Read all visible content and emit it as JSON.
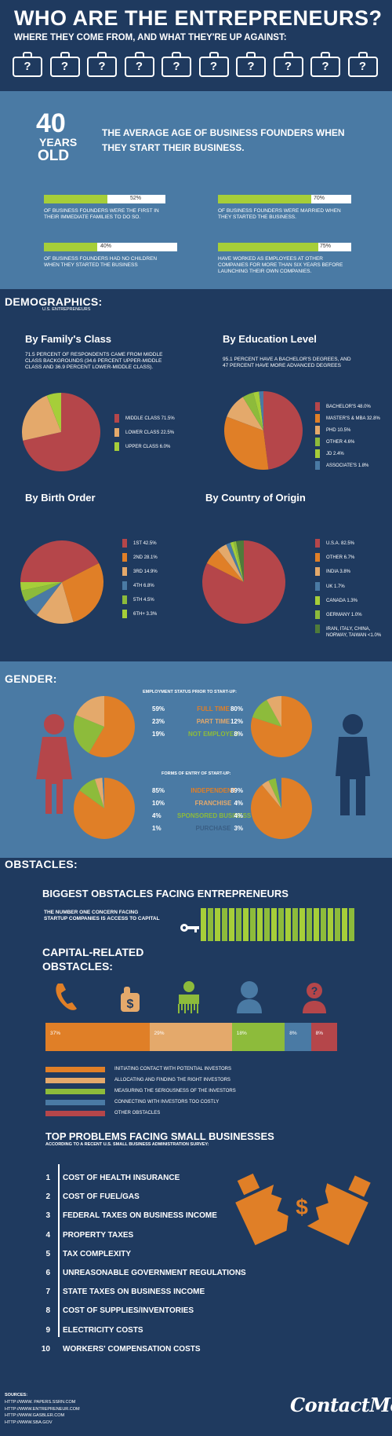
{
  "header": {
    "title": "WHO ARE THE ENTREPRENEURS?",
    "subtitle": "WHERE THEY COME FROM, AND WHAT THEY'RE UP AGAINST:",
    "briefcase_glyph": "?"
  },
  "stats": {
    "age_number": "40",
    "age_years": "YEARS",
    "age_old": "OLD",
    "age_text": "THE AVERAGE AGE OF BUSINESS FOUNDERS WHEN THEY START THEIR BUSINESS.",
    "bars": [
      {
        "pct": "52%",
        "value": 52,
        "text": "OF BUSINESS FOUNDERS WERE THE FIRST IN THEIR IMMEDIATE FAMILIES TO DO SO."
      },
      {
        "pct": "70%",
        "value": 70,
        "text": "OF BUSINESS FOUNDERS WERE MARRIED WHEN THEY STARTED THE BUSINESS."
      },
      {
        "pct": "40%",
        "value": 40,
        "text": "OF BUSINESS FOUNDERS HAD NO CHILDREN WHEN THEY STARTED THE BUSINESS"
      },
      {
        "pct": "75%",
        "value": 75,
        "text": "HAVE WORKED AS EMPLOYEES AT OTHER COMPANIES FOR MORE THAN SIX YEARS BEFORE LAUNCHING THEIR OWN COMPANIES."
      }
    ]
  },
  "demographics": {
    "heading": "DEMOGRAPHICS:",
    "sub": "U.S. ENTREPRENEURS",
    "family": {
      "title": "By Family's Class",
      "desc": "71.5 PERCENT OF RESPONDENTS CAME FROM MIDDLE CLASS BACKGROUNDS (34.6 PERCENT UPPER-MIDDLE CLASS AND 36.9 PERCENT LOWER-MIDDLE CLASS).",
      "legend": [
        "MIDDLE CLASS  71.5%",
        "LOWER CLASS  22.5%",
        "UPPER CLASS  6.0%"
      ]
    },
    "education": {
      "title": "By Education Level",
      "desc": "95.1 PERCENT HAVE A BACHELOR'S DEGREES, AND 47 PERCENT HAVE MORE ADVANCED DEGREES",
      "legend": [
        "BACHELOR'S 48.0%",
        "MASTER'S & MBA 32.8%",
        "PHD 10.5%",
        "OTHER 4.6%",
        "JD 2.4%",
        "ASSOCIATE'S 1.8%"
      ]
    },
    "birth": {
      "title": "By Birth Order",
      "legend": [
        "1ST  42.5%",
        "2ND  28.1%",
        "3RD  14.9%",
        "4TH  6.8%",
        "5TH  4.5%",
        "6TH+  3.3%"
      ]
    },
    "country": {
      "title": "By Country of Origin",
      "legend": [
        "U.S.A.  82.5%",
        "OTHER  6.7%",
        "INDIA  3.8%",
        "UK  1.7%",
        "CANADA  1.3%",
        "GERMANY  1.0%",
        "IRAN, ITALY, CHINA,",
        "NORWAY, TAIWAN <1.0%"
      ]
    }
  },
  "gender": {
    "heading": "GENDER:",
    "employment_title": "EMPLOYMENT STATUS PRIOR TO START-UP:",
    "employment_rows": [
      {
        "f": "59%",
        "label": "FULL TIME",
        "m": "80%"
      },
      {
        "f": "23%",
        "label": "PART TIME",
        "m": "12%"
      },
      {
        "f": "19%",
        "label": "NOT EMPLOYED",
        "m": "8%"
      }
    ],
    "entry_title": "FORMS OF ENTRY OF START-UP:",
    "entry_rows": [
      {
        "f": "85%",
        "label": "INDEPENDENT",
        "m": "89%"
      },
      {
        "f": "10%",
        "label": "FRANCHISE",
        "m": "4%"
      },
      {
        "f": "4%",
        "label": "SPONSORED BUSINESS",
        "m": "4%"
      },
      {
        "f": "1%",
        "label": "PURCHASE",
        "m": "3%"
      }
    ]
  },
  "obstacles": {
    "heading": "OBSTACLES:",
    "biggest_title": "BIGGEST OBSTACLES FACING ENTREPRENEURS",
    "biggest_text": "THE NUMBER ONE CONCERN FACING STARTUP COMPANIES IS ACCESS TO CAPITAL",
    "capital_title_1": "CAPITAL-RELATED",
    "capital_title_2": "OBSTACLES:",
    "capital_segments": [
      {
        "label": "37%",
        "value": 37,
        "color": "#e07f27"
      },
      {
        "label": "29%",
        "value": 29,
        "color": "#e4a96b"
      },
      {
        "label": "18%",
        "value": 18,
        "color": "#8dbb3b"
      },
      {
        "label": "8%",
        "value": 8,
        "color": "#4a7aa4"
      },
      {
        "label": "8%",
        "value": 8,
        "color": "#b5464a"
      }
    ],
    "capital_legend": [
      "INITIATING CONTACT WITH POTENTIAL INVESTORS",
      "ALLOCATING AND FINDING THE RIGHT INVESTORS",
      "MEASURING THE SERIOUSNESS OF THE INVESTORS",
      "CONNECTING WITH INVESTORS TOO COSTLY",
      "OTHER OBSTACLES"
    ]
  },
  "problems": {
    "title": "TOP PROBLEMS FACING SMALL BUSINESSES",
    "sub": "ACCORDING TO A RECENT U.S. SMALL BUSINESS ADMINISTRATION SURVEY:",
    "items": [
      {
        "n": "1",
        "t": "COST OF HEALTH INSURANCE"
      },
      {
        "n": "2",
        "t": "COST OF FUEL/GAS"
      },
      {
        "n": "3",
        "t": "FEDERAL TAXES ON BUSINESS INCOME"
      },
      {
        "n": "4",
        "t": "PROPERTY TAXES"
      },
      {
        "n": "5",
        "t": "TAX COMPLEXITY"
      },
      {
        "n": "6",
        "t": "UNREASONABLE GOVERNMENT REGULATIONS"
      },
      {
        "n": "7",
        "t": "STATE TAXES ON BUSINESS INCOME"
      },
      {
        "n": "8",
        "t": "COST OF SUPPLIES/INVENTORIES"
      },
      {
        "n": "9",
        "t": "ELECTRICITY COSTS"
      },
      {
        "n": "10",
        "t": "WORKERS' COMPENSATION COSTS"
      }
    ]
  },
  "footer": {
    "sources_label": "SOURCES:",
    "sources": [
      "HTTP://WWW. PAPERS.SSRN.COM",
      "HTTP://WWW.ENTREPRENEUR.COM",
      "HTTP://WWW.GASBLER.COM",
      "HTTP://WWW.SBA.GOV"
    ],
    "logo": "ContactMe"
  },
  "colors": {
    "navy": "#1f3a5f",
    "steel": "#4a7aa4",
    "green": "#a6ce39",
    "orange": "#e07f27",
    "red": "#b5464a"
  }
}
